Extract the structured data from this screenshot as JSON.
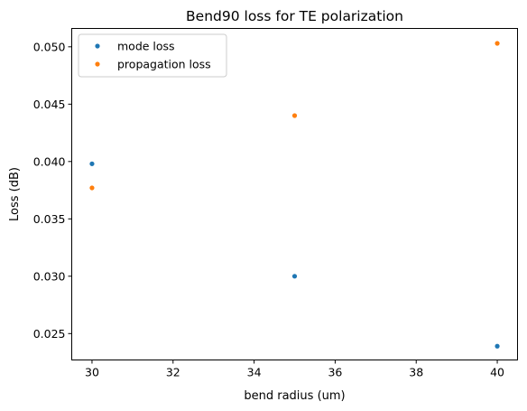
{
  "chart_data": {
    "type": "scatter",
    "title": "Bend90 loss for TE polarization",
    "xlabel": "bend radius (um)",
    "ylabel": "Loss (dB)",
    "xlim": [
      29.5,
      40.5
    ],
    "ylim": [
      0.0227,
      0.0516
    ],
    "xticks": [
      30,
      32,
      34,
      36,
      38,
      40
    ],
    "xtick_labels": [
      "30",
      "32",
      "34",
      "36",
      "38",
      "40"
    ],
    "yticks": [
      0.025,
      0.03,
      0.035,
      0.04,
      0.045,
      0.05
    ],
    "ytick_labels": [
      "0.025",
      "0.030",
      "0.035",
      "0.040",
      "0.045",
      "0.050"
    ],
    "grid": false,
    "legend_position": "top-left",
    "series": [
      {
        "name": "mode loss",
        "color": "#1f77b4",
        "x": [
          30,
          35,
          40
        ],
        "y": [
          0.0398,
          0.03,
          0.0239
        ]
      },
      {
        "name": "propagation loss",
        "color": "#ff7f0e",
        "x": [
          30,
          35,
          40
        ],
        "y": [
          0.0377,
          0.044,
          0.0503
        ]
      }
    ]
  }
}
